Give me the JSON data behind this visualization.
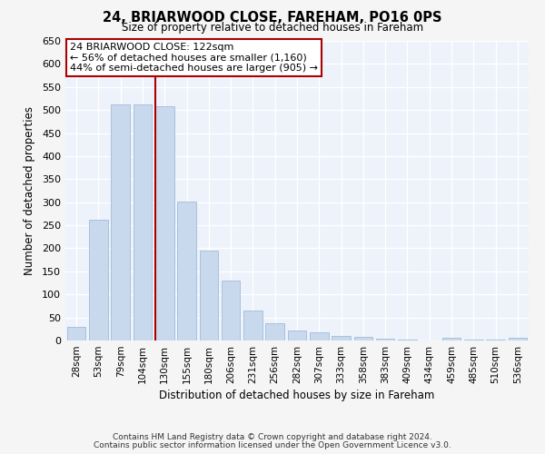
{
  "title": "24, BRIARWOOD CLOSE, FAREHAM, PO16 0PS",
  "subtitle": "Size of property relative to detached houses in Fareham",
  "xlabel": "Distribution of detached houses by size in Fareham",
  "ylabel": "Number of detached properties",
  "bar_color": "#c8d9ee",
  "bar_edge_color": "#a0bcd8",
  "categories": [
    "28sqm",
    "53sqm",
    "79sqm",
    "104sqm",
    "130sqm",
    "155sqm",
    "180sqm",
    "206sqm",
    "231sqm",
    "256sqm",
    "282sqm",
    "307sqm",
    "333sqm",
    "358sqm",
    "383sqm",
    "409sqm",
    "434sqm",
    "459sqm",
    "485sqm",
    "510sqm",
    "536sqm"
  ],
  "values": [
    30,
    262,
    512,
    512,
    508,
    302,
    195,
    130,
    65,
    38,
    22,
    17,
    10,
    7,
    4,
    1,
    0,
    5,
    1,
    1,
    5
  ],
  "ylim": [
    0,
    650
  ],
  "yticks": [
    0,
    50,
    100,
    150,
    200,
    250,
    300,
    350,
    400,
    450,
    500,
    550,
    600,
    650
  ],
  "vline_x_index": 4,
  "property_line_label": "24 BRIARWOOD CLOSE: 122sqm",
  "annotation_line1": "← 56% of detached houses are smaller (1,160)",
  "annotation_line2": "44% of semi-detached houses are larger (905) →",
  "vline_color": "#aa0000",
  "box_edge_color": "#aa0000",
  "plot_bg_color": "#edf2fb",
  "fig_bg_color": "#f5f5f5",
  "grid_color": "#ffffff",
  "footer1": "Contains HM Land Registry data © Crown copyright and database right 2024.",
  "footer2": "Contains public sector information licensed under the Open Government Licence v3.0."
}
